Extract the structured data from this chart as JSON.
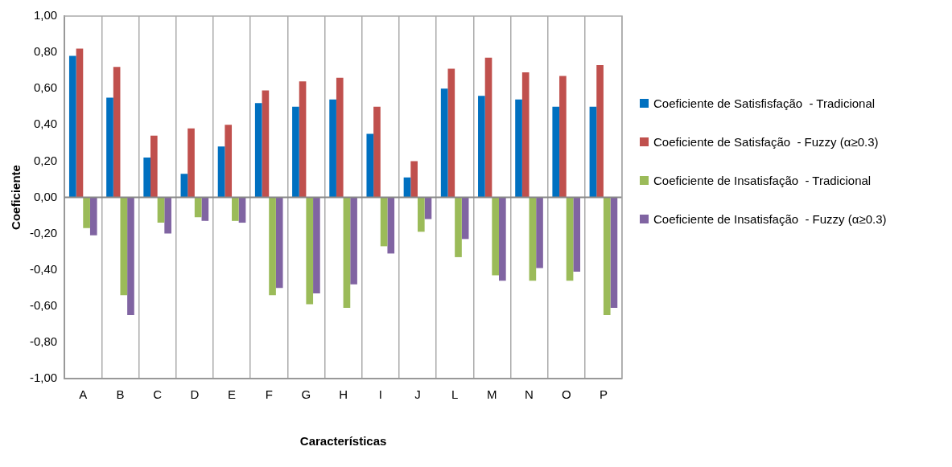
{
  "chart_data": {
    "type": "bar",
    "xlabel": "Características",
    "ylabel": "Coeficiente",
    "categories": [
      "A",
      "B",
      "C",
      "D",
      "E",
      "F",
      "G",
      "H",
      "I",
      "J",
      "L",
      "M",
      "N",
      "O",
      "P"
    ],
    "series": [
      {
        "name": "Coeficiente de Satisfisfação  - Tradicional",
        "color": "#0070c0",
        "values": [
          0.78,
          0.55,
          0.22,
          0.13,
          0.28,
          0.52,
          0.5,
          0.54,
          0.35,
          0.11,
          0.6,
          0.56,
          0.54,
          0.5,
          0.5
        ]
      },
      {
        "name": "Coeficiente de Satisfação  - Fuzzy (α≥0.3)",
        "color": "#c0504d",
        "values": [
          0.82,
          0.72,
          0.34,
          0.38,
          0.4,
          0.59,
          0.64,
          0.66,
          0.5,
          0.2,
          0.71,
          0.77,
          0.69,
          0.67,
          0.73
        ]
      },
      {
        "name": "Coeficiente de Insatisfação  - Tradicional",
        "color": "#9bbb59",
        "values": [
          -0.17,
          -0.54,
          -0.14,
          -0.11,
          -0.13,
          -0.54,
          -0.59,
          -0.61,
          -0.27,
          -0.19,
          -0.33,
          -0.43,
          -0.46,
          -0.46,
          -0.65
        ]
      },
      {
        "name": "Coeficiente de Insatisfação  - Fuzzy (α≥0.3)",
        "color": "#8064a2",
        "values": [
          -0.21,
          -0.65,
          -0.2,
          -0.13,
          -0.14,
          -0.5,
          -0.53,
          -0.48,
          -0.31,
          -0.12,
          -0.23,
          -0.46,
          -0.39,
          -0.41,
          -0.61
        ]
      }
    ],
    "ylim": [
      -1,
      1
    ],
    "yticks": [
      {
        "value": -1,
        "label": "-1,00"
      },
      {
        "value": -0.8,
        "label": "-0,80"
      },
      {
        "value": -0.6,
        "label": "-0,60"
      },
      {
        "value": -0.4,
        "label": "-0,40"
      },
      {
        "value": -0.2,
        "label": "-0,20"
      },
      {
        "value": 0,
        "label": "0,00"
      },
      {
        "value": 0.2,
        "label": "0,20"
      },
      {
        "value": 0.4,
        "label": "0,40"
      },
      {
        "value": 0.6,
        "label": "0,60"
      },
      {
        "value": 0.8,
        "label": "0,80"
      },
      {
        "value": 1,
        "label": "1,00"
      }
    ],
    "grid": "x",
    "legend": "right"
  }
}
